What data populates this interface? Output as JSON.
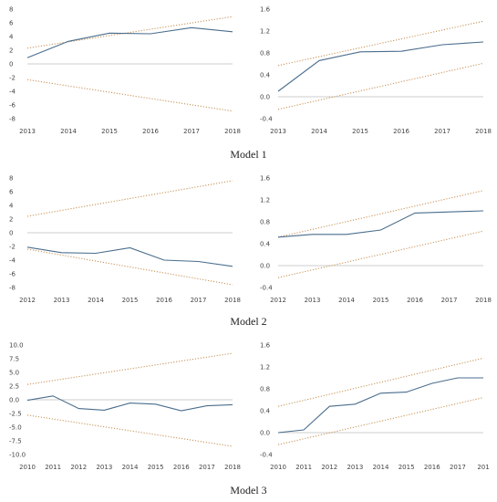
{
  "captions": [
    "Model 1",
    "Model 2",
    "Model 3"
  ],
  "colors": {
    "series": "#4a6d8c",
    "bound": "#c9955a",
    "zero": "#bdbdbd"
  },
  "chart_data": [
    {
      "id": "m1-left",
      "type": "line",
      "x": [
        "2013",
        "2014",
        "2015",
        "2016",
        "2017",
        "2018"
      ],
      "ylim": [
        -8,
        8
      ],
      "yticks": [
        8,
        6,
        4,
        2,
        0,
        -2,
        -4,
        -6,
        -8
      ],
      "ytick_labels": [
        "8",
        "6",
        "4",
        "2",
        "0",
        "-2",
        "-4",
        "-6",
        "-8"
      ],
      "series": [
        {
          "values": [
            0.9,
            3.3,
            4.5,
            4.4,
            5.3,
            4.7
          ]
        }
      ],
      "bounds": {
        "upper": [
          2.3,
          6.9
        ],
        "lower": [
          -2.3,
          -6.9
        ]
      }
    },
    {
      "id": "m1-right",
      "type": "line",
      "x": [
        "2013",
        "2014",
        "2015",
        "2016",
        "2017",
        "2018"
      ],
      "ylim": [
        -0.4,
        1.6
      ],
      "yticks": [
        1.6,
        1.2,
        0.8,
        0.4,
        0.0,
        -0.4
      ],
      "ytick_labels": [
        "1.6",
        "1.2",
        "0.8",
        "0.4",
        "0.0",
        "-0.4"
      ],
      "series": [
        {
          "values": [
            0.1,
            0.66,
            0.82,
            0.83,
            0.95,
            1.0
          ]
        }
      ],
      "bounds": {
        "upper": [
          0.57,
          1.38
        ],
        "lower": [
          -0.23,
          0.61
        ]
      }
    },
    {
      "id": "m2-left",
      "type": "line",
      "x": [
        "2012",
        "2013",
        "2014",
        "2015",
        "2016",
        "2017",
        "2018"
      ],
      "ylim": [
        -8,
        8
      ],
      "yticks": [
        8,
        6,
        4,
        2,
        0,
        -2,
        -4,
        -6,
        -8
      ],
      "ytick_labels": [
        "8",
        "6",
        "4",
        "2",
        "0",
        "-2",
        "-4",
        "-6",
        "-8"
      ],
      "series": [
        {
          "values": [
            -2.1,
            -2.9,
            -3.0,
            -2.2,
            -4.0,
            -4.2,
            -4.9
          ]
        }
      ],
      "bounds": {
        "upper": [
          2.4,
          7.6
        ],
        "lower": [
          -2.4,
          -7.6
        ]
      }
    },
    {
      "id": "m2-right",
      "type": "line",
      "x": [
        "2012",
        "2013",
        "2014",
        "2015",
        "2016",
        "2017",
        "2018"
      ],
      "ylim": [
        -0.4,
        1.6
      ],
      "yticks": [
        1.6,
        1.2,
        0.8,
        0.4,
        0.0,
        -0.4
      ],
      "ytick_labels": [
        "1.6",
        "1.2",
        "0.8",
        "0.4",
        "0.0",
        "-0.4"
      ],
      "series": [
        {
          "values": [
            0.52,
            0.57,
            0.57,
            0.65,
            0.96,
            0.98,
            1.0
          ]
        }
      ],
      "bounds": {
        "upper": [
          0.52,
          1.37
        ],
        "lower": [
          -0.22,
          0.63
        ]
      }
    },
    {
      "id": "m3-left",
      "type": "line",
      "x": [
        "2010",
        "2011",
        "2012",
        "2013",
        "2014",
        "2015",
        "2016",
        "2017",
        "2018"
      ],
      "ylim": [
        -10,
        10
      ],
      "yticks": [
        10,
        7.5,
        5,
        2.5,
        0,
        -2.5,
        -5,
        -7.5,
        -10
      ],
      "ytick_labels": [
        "10.0",
        "7.5",
        "5.0",
        "2.5",
        "0.0",
        "-2.5",
        "-5.0",
        "-7.5",
        "-10.0"
      ],
      "series": [
        {
          "values": [
            -0.1,
            0.7,
            -1.6,
            -1.9,
            -0.6,
            -0.8,
            -2.0,
            -1.1,
            -0.9
          ]
        }
      ],
      "bounds": {
        "upper": [
          2.8,
          8.5
        ],
        "lower": [
          -2.8,
          -8.5
        ]
      }
    },
    {
      "id": "m3-right",
      "type": "line",
      "x": [
        "2010",
        "2011",
        "2012",
        "2013",
        "2014",
        "2015",
        "2016",
        "2017",
        "201"
      ],
      "ylim": [
        -0.4,
        1.6
      ],
      "yticks": [
        1.6,
        1.2,
        0.8,
        0.4,
        0.0,
        -0.4
      ],
      "ytick_labels": [
        "1.6",
        "1.2",
        "0.8",
        "0.4",
        "0.0",
        "-0.4"
      ],
      "series": [
        {
          "values": [
            0.0,
            0.05,
            0.48,
            0.52,
            0.72,
            0.74,
            0.9,
            1.0,
            1.0
          ]
        }
      ],
      "bounds": {
        "upper": [
          0.48,
          1.36
        ],
        "lower": [
          -0.22,
          0.64
        ]
      }
    }
  ]
}
